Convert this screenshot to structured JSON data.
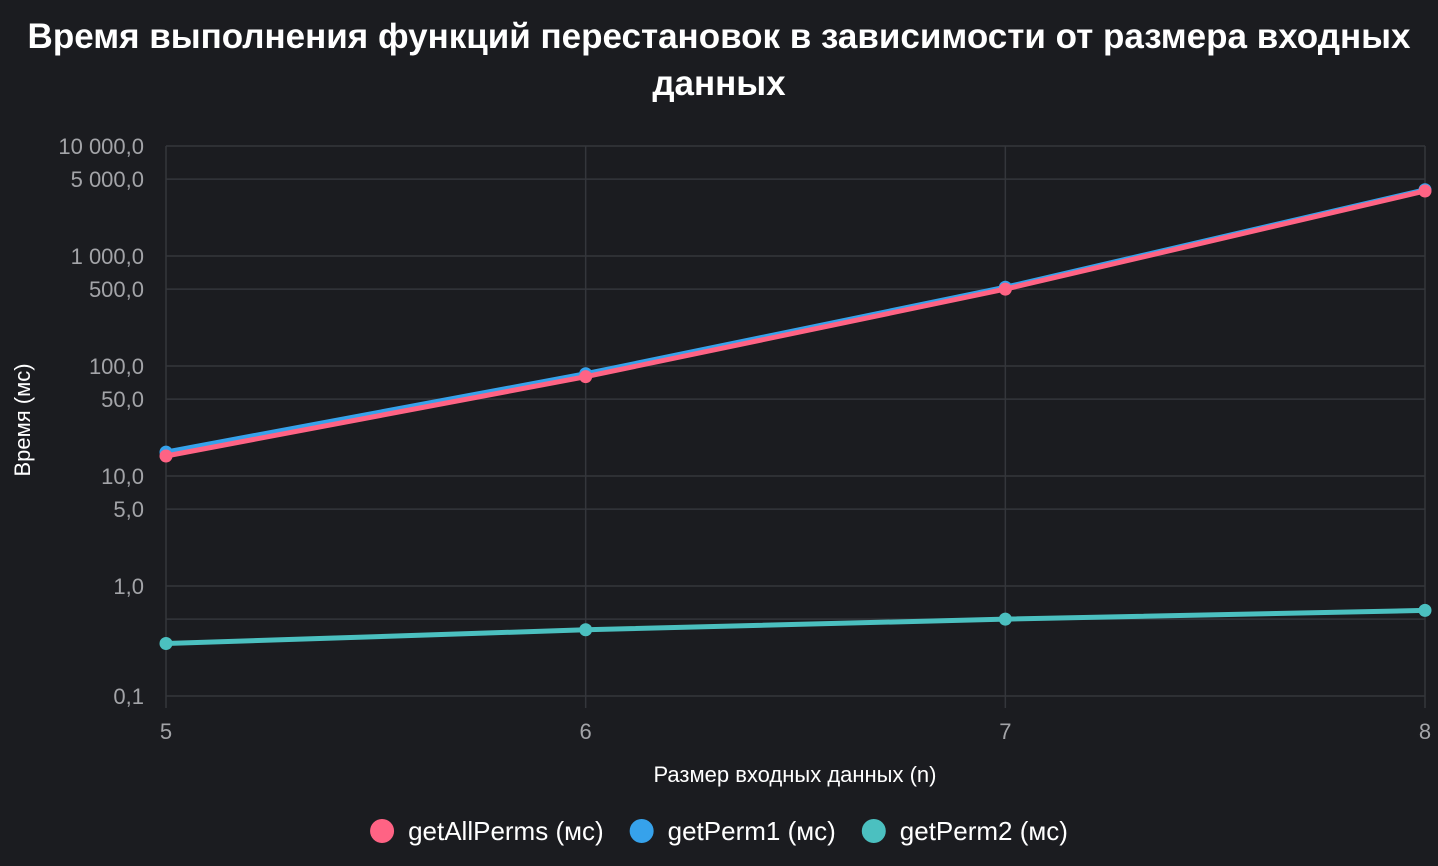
{
  "chart_data": {
    "type": "line",
    "title_lines": [
      "Время выполнения функций перестановок в зависимости от размера входных",
      "данных"
    ],
    "xlabel": "Размер входных данных (n)",
    "ylabel": "Время (мс)",
    "x": [
      5,
      6,
      7,
      8
    ],
    "x_tick_labels": [
      "5",
      "6",
      "7",
      "8"
    ],
    "y_scale": "log",
    "ylim": [
      0.1,
      10000
    ],
    "y_tick_values": [
      10000,
      5000,
      1000,
      500,
      100,
      50,
      10,
      5,
      1,
      0.5,
      0.1
    ],
    "y_tick_labels": [
      "10 000,0",
      "5 000,0",
      "1 000,0",
      "500,0",
      "100,0",
      "50,0",
      "10,0",
      "5,0",
      "1,0",
      "",
      "0,1"
    ],
    "grid": true,
    "legend_position": "bottom",
    "series": [
      {
        "name": "getPerm1 (мс)",
        "color": "#36a2eb",
        "values": [
          16.5,
          85,
          520,
          4000
        ]
      },
      {
        "name": "getAllPerms (мс)",
        "color": "#ff6384",
        "values": [
          15.2,
          80,
          500,
          3900
        ]
      },
      {
        "name": "getPerm2 (мс)",
        "color": "#4bc0c0",
        "values": [
          0.3,
          0.4,
          0.5,
          0.6
        ]
      }
    ],
    "legend_order": [
      "getAllPerms (мс)",
      "getPerm1 (мс)",
      "getPerm2 (мс)"
    ]
  }
}
